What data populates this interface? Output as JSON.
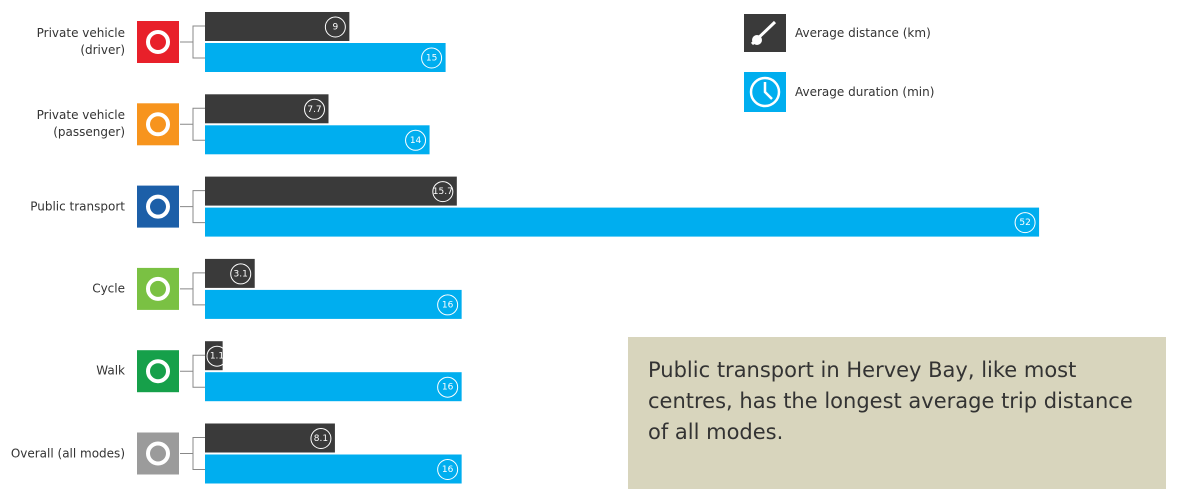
{
  "chart_data": {
    "type": "bar",
    "categories": [
      "Private vehicle\n(driver)",
      "Private vehicle\n(passenger)",
      "Public transport",
      "Cycle",
      "Walk",
      "Overall (all modes)"
    ],
    "category_colors": [
      "#e8202a",
      "#f7941d",
      "#1c5fa8",
      "#7ac143",
      "#16a04a",
      "#9b9b9b"
    ],
    "series": [
      {
        "name": "Average distance (km)",
        "color": "#3a3a3a",
        "values": [
          9,
          7.7,
          15.7,
          3.1,
          1.1,
          8.1
        ]
      },
      {
        "name": "Average duration (min)",
        "color": "#00aeef",
        "values": [
          15,
          14,
          52,
          16,
          16,
          16
        ]
      }
    ],
    "annotation": "Public transport in Hervey Bay, like most centres, has the longest average trip distance of all modes."
  }
}
